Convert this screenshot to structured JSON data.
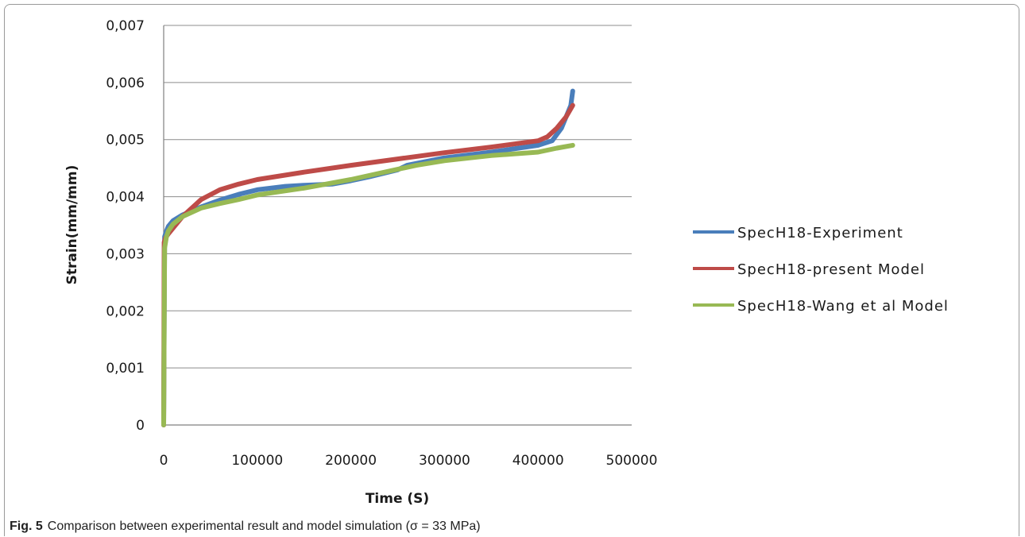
{
  "chart_data": {
    "type": "line",
    "xlabel": "Time (S)",
    "ylabel": "Strain(mm/mm)",
    "xlim": [
      0,
      500000
    ],
    "ylim": [
      0,
      0.007
    ],
    "x_ticks": [
      "0",
      "100000",
      "200000",
      "300000",
      "400000",
      "500000"
    ],
    "y_ticks": [
      "0",
      "0,001",
      "0,002",
      "0,003",
      "0,004",
      "0,005",
      "0,006",
      "0,007"
    ],
    "grid": "horizontal",
    "legend_position": "right",
    "series": [
      {
        "name": "SpecH18-Experiment",
        "color": "#4a7ebb",
        "x": [
          0,
          1000,
          3000,
          5000,
          10000,
          20000,
          40000,
          60000,
          80000,
          100000,
          130000,
          150000,
          180000,
          200000,
          220000,
          250000,
          260000,
          300000,
          350000,
          400000,
          415000,
          425000,
          430000,
          435000,
          437000
        ],
        "y": [
          0,
          0.0033,
          0.0034,
          0.00348,
          0.00358,
          0.00368,
          0.00382,
          0.00394,
          0.00404,
          0.00412,
          0.00418,
          0.0042,
          0.00422,
          0.00428,
          0.00435,
          0.00447,
          0.00455,
          0.00468,
          0.00478,
          0.0049,
          0.00498,
          0.0052,
          0.0054,
          0.0056,
          0.00585
        ]
      },
      {
        "name": "SpecH18-present Model",
        "color": "#be4b48",
        "x": [
          0,
          500,
          2000,
          5000,
          10000,
          20000,
          40000,
          60000,
          80000,
          100000,
          150000,
          200000,
          250000,
          300000,
          350000,
          400000,
          410000,
          420000,
          430000,
          437000
        ],
        "y": [
          0,
          0.0032,
          0.00328,
          0.00335,
          0.00345,
          0.00365,
          0.00395,
          0.00412,
          0.00422,
          0.0043,
          0.00443,
          0.00455,
          0.00466,
          0.00477,
          0.00487,
          0.00498,
          0.00505,
          0.0052,
          0.0054,
          0.0056
        ]
      },
      {
        "name": "SpecH18-Wang et al Model",
        "color": "#98b954",
        "x": [
          0,
          1000,
          3000,
          5000,
          10000,
          20000,
          40000,
          60000,
          80000,
          100000,
          150000,
          200000,
          250000,
          270000,
          300000,
          350000,
          400000,
          420000,
          437000
        ],
        "y": [
          0,
          0.0031,
          0.0033,
          0.0034,
          0.00352,
          0.00365,
          0.0038,
          0.00388,
          0.00395,
          0.00403,
          0.00415,
          0.0043,
          0.00448,
          0.00455,
          0.00463,
          0.00472,
          0.00478,
          0.00485,
          0.0049
        ]
      }
    ]
  },
  "caption": {
    "label": "Fig. 5",
    "text": "Comparison between experimental result and model simulation (σ = 33 MPa)"
  }
}
